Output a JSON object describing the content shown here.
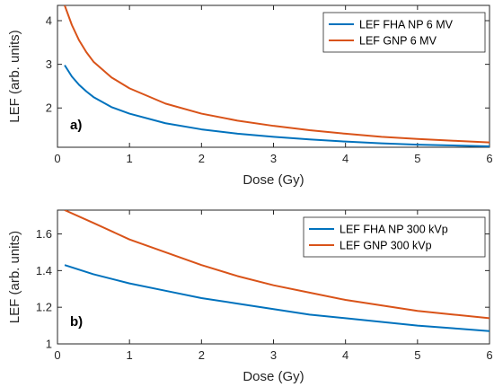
{
  "chart_data": [
    {
      "type": "line",
      "panel_label": "a)",
      "xlabel": "Dose (Gy)",
      "ylabel": "LEF (arb. units)",
      "xlim": [
        0,
        6
      ],
      "ylim": [
        1.1,
        4.35
      ],
      "xticks": [
        0,
        1,
        2,
        3,
        4,
        5,
        6
      ],
      "yticks": [
        2,
        3,
        4
      ],
      "grid": false,
      "legend": "top-right",
      "series": [
        {
          "name": "LEF FHA NP 6 MV",
          "color": "#0072BD",
          "x": [
            0.1,
            0.2,
            0.3,
            0.4,
            0.5,
            0.75,
            1,
            1.5,
            2,
            2.5,
            3,
            3.5,
            4,
            4.5,
            5,
            5.5,
            6
          ],
          "y": [
            2.98,
            2.72,
            2.53,
            2.38,
            2.25,
            2.02,
            1.87,
            1.65,
            1.51,
            1.41,
            1.34,
            1.28,
            1.23,
            1.19,
            1.16,
            1.14,
            1.12
          ]
        },
        {
          "name": "LEF GNP 6 MV",
          "color": "#D95319",
          "x": [
            0.1,
            0.2,
            0.3,
            0.4,
            0.5,
            0.75,
            1,
            1.5,
            2,
            2.5,
            3,
            3.5,
            4,
            4.5,
            5,
            5.5,
            6
          ],
          "y": [
            4.35,
            3.9,
            3.55,
            3.28,
            3.06,
            2.7,
            2.45,
            2.1,
            1.87,
            1.71,
            1.59,
            1.49,
            1.41,
            1.34,
            1.29,
            1.25,
            1.21
          ]
        }
      ]
    },
    {
      "type": "line",
      "panel_label": "b)",
      "xlabel": "Dose (Gy)",
      "ylabel": "LEF (arb. units)",
      "xlim": [
        0,
        6
      ],
      "ylim": [
        1.0,
        1.73
      ],
      "xticks": [
        0,
        1,
        2,
        3,
        4,
        5,
        6
      ],
      "yticks": [
        1,
        1.2,
        1.4,
        1.6
      ],
      "grid": false,
      "legend": "top-right",
      "series": [
        {
          "name": "LEF FHA NP 300 kVp",
          "color": "#0072BD",
          "x": [
            0.1,
            0.5,
            1,
            1.5,
            2,
            2.5,
            3,
            3.5,
            4,
            4.5,
            5,
            5.5,
            6
          ],
          "y": [
            1.43,
            1.38,
            1.33,
            1.29,
            1.25,
            1.22,
            1.19,
            1.16,
            1.14,
            1.12,
            1.1,
            1.085,
            1.07
          ]
        },
        {
          "name": "LEF GNP 300 kVp",
          "color": "#D95319",
          "x": [
            0.1,
            0.5,
            1,
            1.5,
            2,
            2.5,
            3,
            3.5,
            4,
            4.5,
            5,
            5.5,
            6
          ],
          "y": [
            1.73,
            1.66,
            1.57,
            1.5,
            1.43,
            1.37,
            1.32,
            1.28,
            1.24,
            1.21,
            1.18,
            1.16,
            1.14
          ]
        }
      ]
    }
  ]
}
